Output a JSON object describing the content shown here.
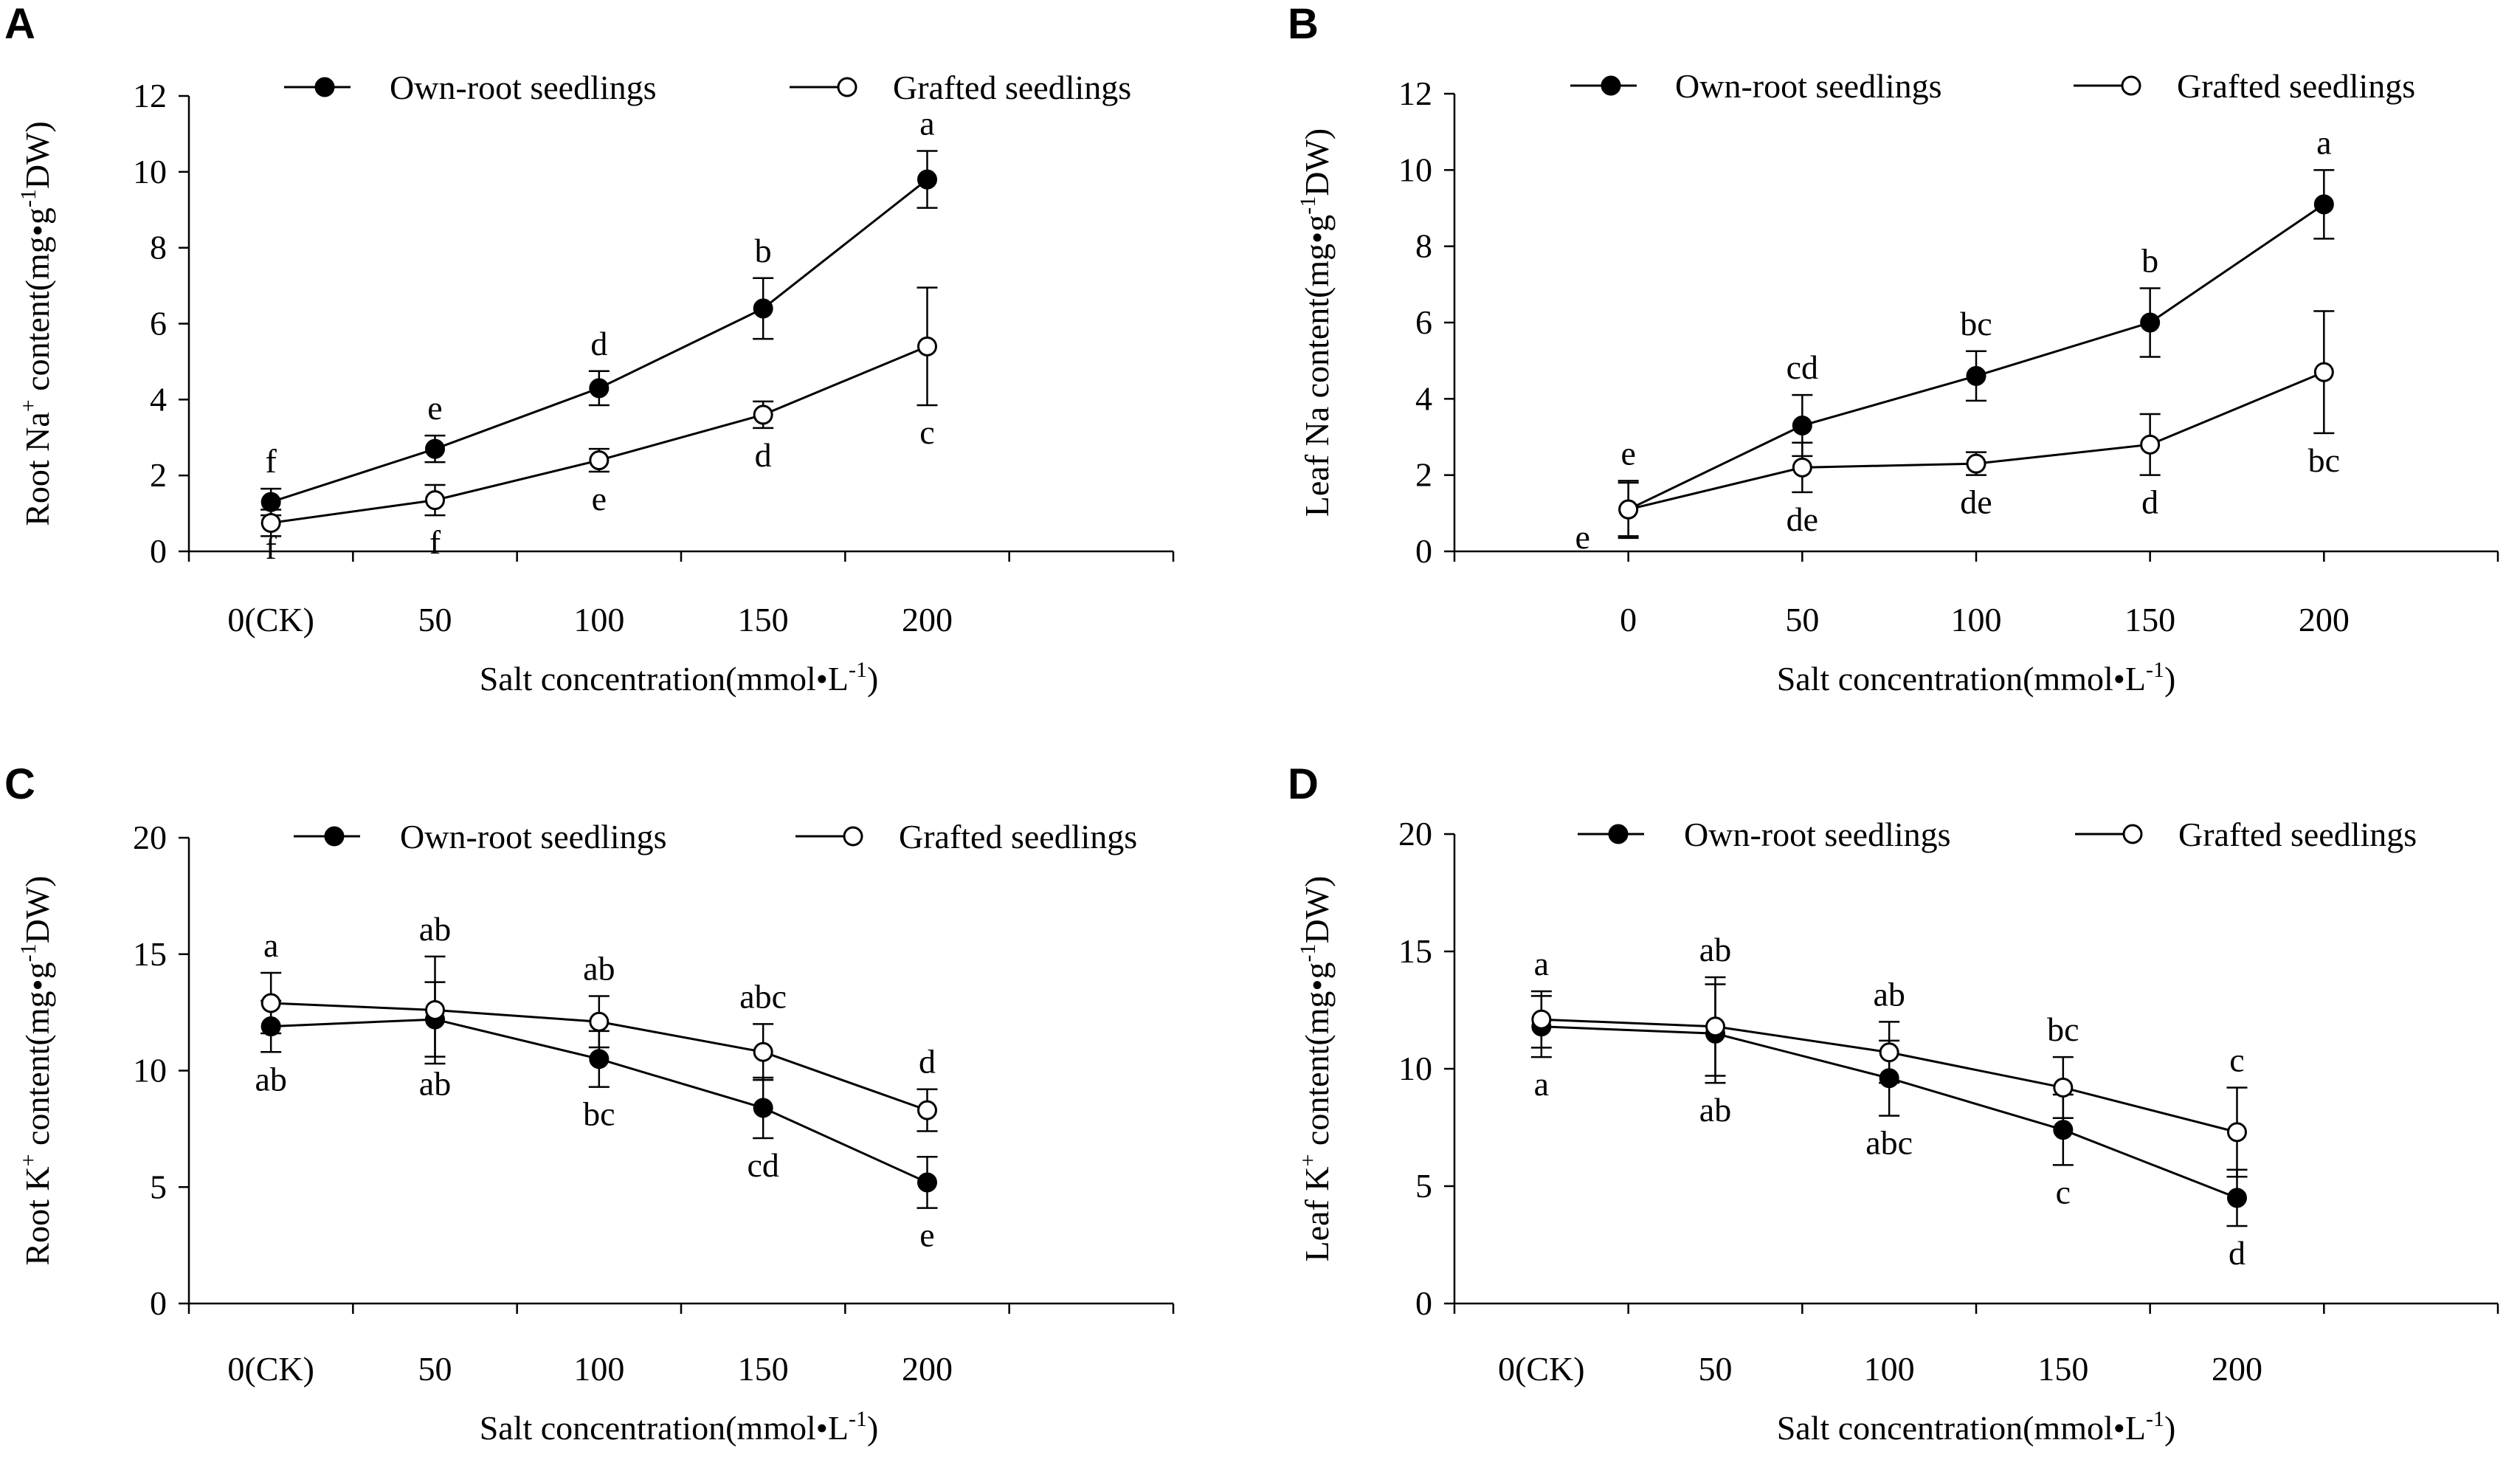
{
  "figure": {
    "panels": [
      {
        "letter": "A"
      },
      {
        "letter": "B"
      },
      {
        "letter": "C"
      },
      {
        "letter": "D"
      }
    ]
  },
  "chart_data": [
    {
      "type": "line",
      "panel": "A",
      "title": "",
      "xlabel": "Salt concentration(mmol•L",
      "xlabel_sup": "-1",
      "xlabel_end": ")",
      "ylabel": "Root Na",
      "ylabel_sup": "+",
      "ylabel_mid": " content(mg•g",
      "ylabel_sup2": "-1",
      "ylabel_end": "DW)",
      "categories": [
        "0(CK)",
        "50",
        "100",
        "150",
        "200"
      ],
      "ylim": [
        0,
        12
      ],
      "yticks": [
        "0",
        "2",
        "4",
        "6",
        "8",
        "10",
        "12"
      ],
      "x_offset": 0,
      "legend": "top",
      "series": [
        {
          "name": "Own-root seedlings",
          "marker": "filled",
          "values": [
            1.3,
            2.7,
            4.3,
            6.4,
            9.8
          ],
          "errors": [
            0.35,
            0.35,
            0.45,
            0.8,
            0.75
          ],
          "letters": [
            "f",
            "e",
            "d",
            "b",
            "a"
          ],
          "letter_pos": [
            "above",
            "above",
            "above",
            "above",
            "above"
          ]
        },
        {
          "name": "Grafted seedlings",
          "marker": "open",
          "values": [
            0.75,
            1.35,
            2.4,
            3.6,
            5.4
          ],
          "errors": [
            0.35,
            0.4,
            0.3,
            0.35,
            1.55
          ],
          "letters": [
            "f",
            "f",
            "e",
            "d",
            "c"
          ],
          "letter_pos": [
            "below",
            "below",
            "below",
            "below",
            "below"
          ]
        }
      ]
    },
    {
      "type": "line",
      "panel": "B",
      "title": "",
      "xlabel": "Salt concentration(mmol•L",
      "xlabel_sup": "-1",
      "xlabel_end": ")",
      "ylabel": "Leaf Na content(mg•g",
      "ylabel_sup": "-1",
      "ylabel_mid": "",
      "ylabel_sup2": "",
      "ylabel_end": "DW)",
      "categories": [
        "0",
        "50",
        "100",
        "150",
        "200"
      ],
      "ylim": [
        0,
        12
      ],
      "yticks": [
        "0",
        "2",
        "4",
        "6",
        "8",
        "10",
        "12"
      ],
      "x_offset": 0.5,
      "legend": "top",
      "series": [
        {
          "name": "Own-root seedlings",
          "marker": "filled",
          "values": [
            1.1,
            3.3,
            4.6,
            6.0,
            9.1
          ],
          "errors": [
            0.75,
            0.8,
            0.65,
            0.9,
            0.9
          ],
          "letters": [
            "e",
            "cd",
            "bc",
            "b",
            "a"
          ],
          "letter_pos": [
            "above",
            "above",
            "above",
            "above",
            "above"
          ]
        },
        {
          "name": "Grafted seedlings",
          "marker": "open",
          "values": [
            1.1,
            2.2,
            2.3,
            2.8,
            4.7
          ],
          "errors": [
            0.7,
            0.65,
            0.3,
            0.8,
            1.6
          ],
          "letters": [
            "e",
            "de",
            "de",
            "d",
            "bc"
          ],
          "letter_pos": [
            "below-left",
            "below",
            "below",
            "below",
            "below"
          ]
        }
      ]
    },
    {
      "type": "line",
      "panel": "C",
      "title": "",
      "xlabel": "Salt concentration(mmol•L",
      "xlabel_sup": "-1",
      "xlabel_end": ")",
      "ylabel": "Root K",
      "ylabel_sup": "+",
      "ylabel_mid": " content(mg•g",
      "ylabel_sup2": "-1",
      "ylabel_end": "DW)",
      "categories": [
        "0(CK)",
        "50",
        "100",
        "150",
        "200"
      ],
      "ylim": [
        0,
        20
      ],
      "yticks": [
        "0",
        "5",
        "10",
        "15",
        "20"
      ],
      "x_offset": 0,
      "legend": "top",
      "series": [
        {
          "name": "Own-root seedlings",
          "marker": "filled",
          "values": [
            11.9,
            12.2,
            10.5,
            8.4,
            5.2
          ],
          "errors": [
            1.1,
            1.6,
            1.2,
            1.3,
            1.1
          ],
          "letters": [
            "ab",
            "ab",
            "bc",
            "cd",
            "e"
          ],
          "letter_pos": [
            "below",
            "below",
            "below",
            "below",
            "below"
          ]
        },
        {
          "name": "Grafted seedlings",
          "marker": "open",
          "values": [
            12.9,
            12.6,
            12.1,
            10.8,
            8.3
          ],
          "errors": [
            1.3,
            2.3,
            1.1,
            1.2,
            0.9
          ],
          "letters": [
            "a",
            "ab",
            "ab",
            "abc",
            "d"
          ],
          "letter_pos": [
            "above",
            "above",
            "above",
            "above",
            "above"
          ]
        }
      ]
    },
    {
      "type": "line",
      "panel": "D",
      "title": "",
      "xlabel": "Salt concentration(mmol•L",
      "xlabel_sup": "-1",
      "xlabel_end": ")",
      "ylabel": "Leaf K",
      "ylabel_sup": "+",
      "ylabel_mid": " content(mg•g",
      "ylabel_sup2": "-1",
      "ylabel_end": "DW)",
      "categories": [
        "0(CK)",
        "50",
        "100",
        "150",
        "200"
      ],
      "ylim": [
        0,
        20
      ],
      "yticks": [
        "0",
        "5",
        "10",
        "15",
        "20"
      ],
      "x_offset": 0,
      "legend": "top",
      "series": [
        {
          "name": "Own-root seedlings",
          "marker": "filled",
          "values": [
            11.8,
            11.5,
            9.6,
            7.4,
            4.5
          ],
          "errors": [
            1.3,
            2.1,
            1.6,
            1.5,
            1.2
          ],
          "letters": [
            "a",
            "ab",
            "abc",
            "c",
            "d"
          ],
          "letter_pos": [
            "below",
            "below",
            "below",
            "below",
            "below"
          ]
        },
        {
          "name": "Grafted seedlings",
          "marker": "open",
          "values": [
            12.1,
            11.8,
            10.7,
            9.2,
            7.3
          ],
          "errors": [
            1.2,
            2.1,
            1.3,
            1.3,
            1.9
          ],
          "letters": [
            "a",
            "ab",
            "ab",
            "bc",
            "c"
          ],
          "letter_pos": [
            "above",
            "above",
            "above",
            "above",
            "above"
          ]
        }
      ]
    }
  ]
}
